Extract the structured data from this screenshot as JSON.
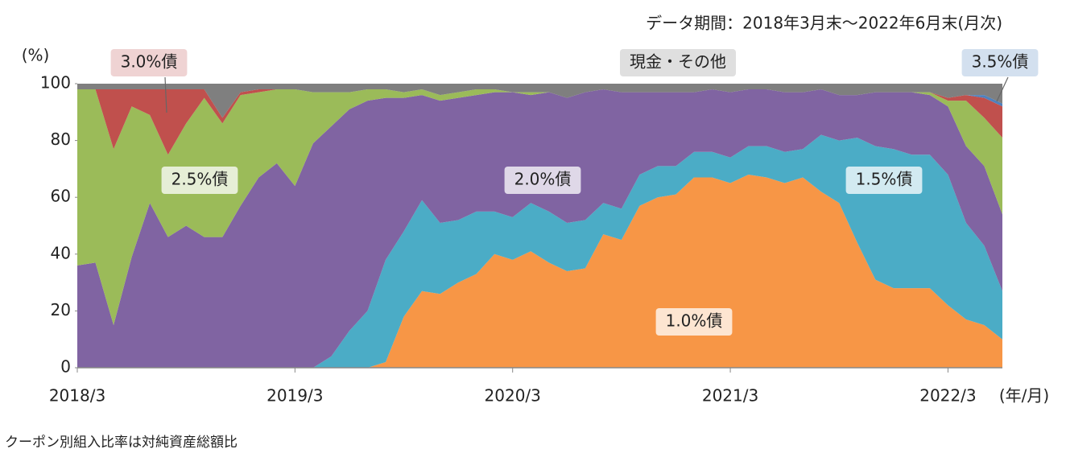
{
  "chart_data": {
    "type": "stacked_area",
    "subtitle": "データ期間：2018年3月末～2022年6月末(月次)",
    "y_label": "(%)",
    "x_label": "(年/月)",
    "footnote": "クーポン別組入比率は対純資産総額比",
    "categories": [
      "2018/3",
      null,
      null,
      null,
      null,
      null,
      null,
      null,
      null,
      null,
      null,
      null,
      "2019/3",
      null,
      null,
      null,
      null,
      null,
      null,
      null,
      null,
      null,
      null,
      null,
      "2020/3",
      null,
      null,
      null,
      null,
      null,
      null,
      null,
      null,
      null,
      null,
      null,
      "2021/3",
      null,
      null,
      null,
      null,
      null,
      null,
      null,
      null,
      null,
      null,
      null,
      "2022/3",
      null,
      null,
      null
    ],
    "ylim": [
      0,
      100
    ],
    "yticks": [
      0,
      20,
      40,
      60,
      80,
      100
    ],
    "series": [
      {
        "name": "1.0%債",
        "color": "#f79646",
        "values": [
          0,
          0,
          0,
          0,
          0,
          0,
          0,
          0,
          0,
          0,
          0,
          0,
          0,
          0,
          0,
          0,
          0,
          2,
          18,
          27,
          26,
          30,
          33,
          40,
          38,
          41,
          37,
          34,
          35,
          47,
          45,
          57,
          60,
          61,
          67,
          67,
          65,
          68,
          67,
          65,
          67,
          62,
          58,
          44,
          31,
          28,
          28,
          28,
          22,
          17,
          15,
          10
        ]
      },
      {
        "name": "1.5%債",
        "color": "#4bacc6",
        "values": [
          0,
          0,
          0,
          0,
          0,
          0,
          0,
          0,
          0,
          0,
          0,
          0,
          0,
          0,
          4,
          13,
          20,
          36,
          30,
          32,
          25,
          22,
          22,
          15,
          15,
          17,
          18,
          17,
          17,
          11,
          11,
          11,
          11,
          10,
          9,
          9,
          9,
          10,
          11,
          11,
          10,
          20,
          22,
          37,
          47,
          49,
          47,
          47,
          46,
          34,
          28,
          17
        ]
      },
      {
        "name": "2.0%債",
        "color": "#8064a2",
        "values": [
          36,
          37,
          15,
          39,
          58,
          46,
          50,
          46,
          46,
          57,
          67,
          72,
          64,
          79,
          81,
          78,
          74,
          57,
          47,
          37,
          43,
          43,
          41,
          42,
          44,
          38,
          42,
          44,
          45,
          40,
          41,
          29,
          26,
          26,
          21,
          22,
          23,
          20,
          20,
          21,
          20,
          16,
          16,
          15,
          19,
          20,
          22,
          21,
          24,
          27,
          28,
          27
        ]
      },
      {
        "name": "2.5%債",
        "color": "#9bbb59",
        "values": [
          62,
          61,
          62,
          53,
          31,
          29,
          36,
          49,
          40,
          39,
          30,
          26,
          34,
          18,
          12,
          6,
          4,
          3,
          2,
          2,
          2,
          2,
          2,
          1,
          0,
          1,
          0,
          0,
          0,
          0,
          0,
          0,
          0,
          0,
          0,
          0,
          0,
          0,
          0,
          0,
          0,
          0,
          0,
          0,
          0,
          0,
          0,
          1,
          2,
          16,
          17,
          27
        ]
      },
      {
        "name": "3.0%債",
        "color": "#c0504d",
        "values": [
          0,
          0,
          21,
          6,
          9,
          23,
          12,
          3,
          2,
          1,
          1,
          0,
          0,
          0,
          0,
          0,
          0,
          0,
          0,
          0,
          0,
          0,
          0,
          0,
          0,
          0,
          0,
          0,
          0,
          0,
          0,
          0,
          0,
          0,
          0,
          0,
          0,
          0,
          0,
          0,
          0,
          0,
          0,
          0,
          0,
          0,
          0,
          0,
          1,
          2,
          7,
          11
        ]
      },
      {
        "name": "3.5%債",
        "color": "#4f81bd",
        "values": [
          0,
          0,
          0,
          0,
          0,
          0,
          0,
          0,
          0,
          0,
          0,
          0,
          0,
          0,
          0,
          0,
          0,
          0,
          0,
          0,
          0,
          0,
          0,
          0,
          0,
          0,
          0,
          0,
          0,
          0,
          0,
          0,
          0,
          0,
          0,
          0,
          0,
          0,
          0,
          0,
          0,
          0,
          0,
          0,
          0,
          0,
          0,
          0,
          0,
          0,
          1,
          1
        ]
      },
      {
        "name": "現金・その他",
        "color": "#7f7f7f",
        "values": [
          2,
          2,
          2,
          2,
          2,
          2,
          2,
          2,
          12,
          3,
          2,
          2,
          2,
          3,
          3,
          3,
          2,
          2,
          3,
          2,
          4,
          3,
          2,
          2,
          3,
          3,
          3,
          5,
          3,
          2,
          3,
          3,
          3,
          3,
          3,
          2,
          3,
          2,
          2,
          3,
          3,
          2,
          4,
          4,
          3,
          3,
          3,
          3,
          5,
          4,
          4,
          7
        ]
      }
    ]
  }
}
